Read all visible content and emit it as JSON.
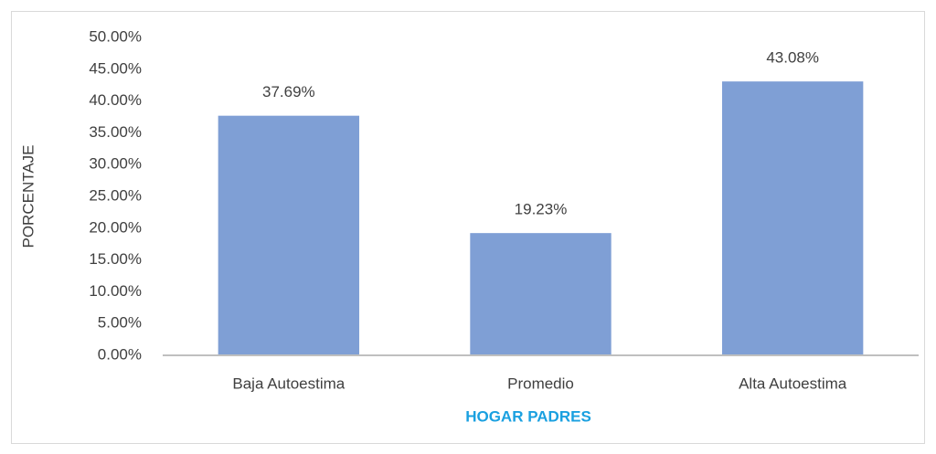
{
  "chart_data": {
    "type": "bar",
    "categories": [
      "Baja Autoestima",
      "Promedio",
      "Alta Autoestima"
    ],
    "values": [
      37.69,
      19.23,
      43.08
    ],
    "value_labels": [
      "37.69%",
      "19.23%",
      "43.08%"
    ],
    "color": "#7f9fd5",
    "x_label": "HOGAR PADRES",
    "y_label": "PORCENTAJE",
    "ylim": [
      0,
      50
    ],
    "yticks": [
      {
        "value": 0,
        "label": "0.00%"
      },
      {
        "value": 5,
        "label": "5.00%"
      },
      {
        "value": 10,
        "label": "10.00%"
      },
      {
        "value": 15,
        "label": "15.00%"
      },
      {
        "value": 20,
        "label": "20.00%"
      },
      {
        "value": 25,
        "label": "25.00%"
      },
      {
        "value": 30,
        "label": "30.00%"
      },
      {
        "value": 35,
        "label": "35.00%"
      },
      {
        "value": 40,
        "label": "40.00%"
      },
      {
        "value": 45,
        "label": "45.00%"
      },
      {
        "value": 50,
        "label": "50.00%"
      }
    ],
    "grid": false
  }
}
